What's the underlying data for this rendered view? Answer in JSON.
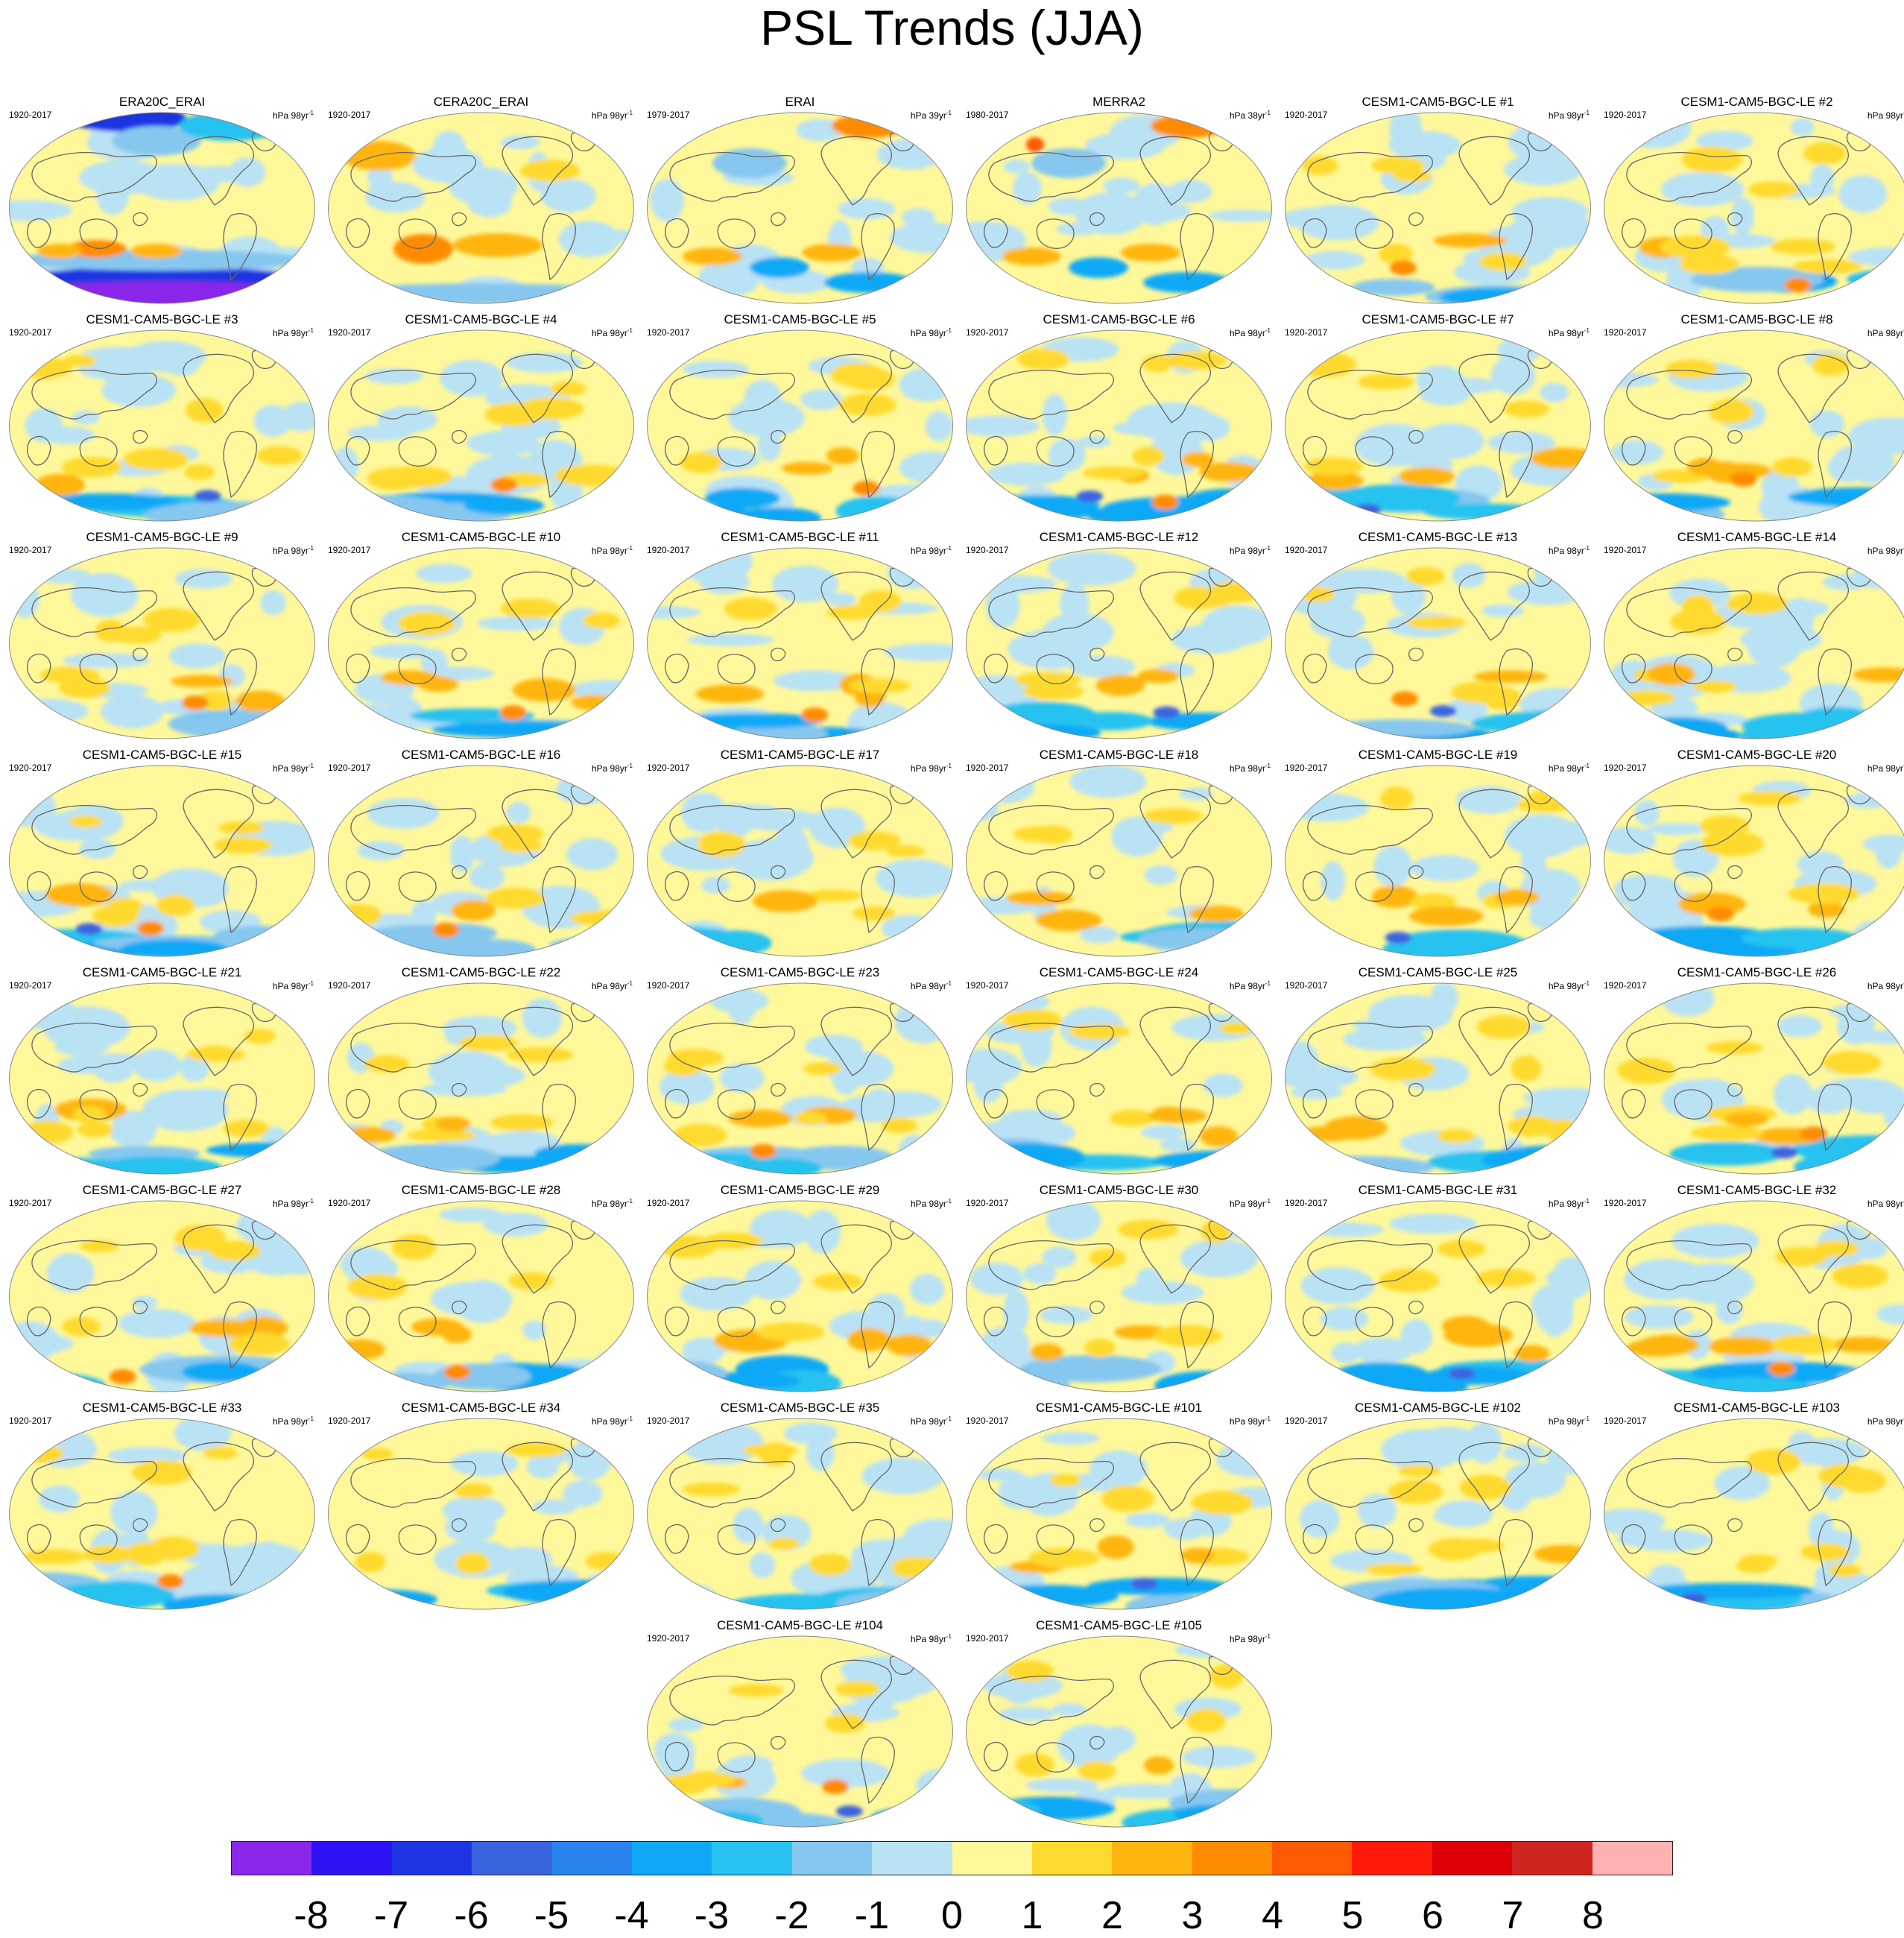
{
  "title": "PSL Trends (JJA)",
  "colorbar": {
    "colors": [
      "#8a27ea",
      "#2d12f5",
      "#1d35e3",
      "#3a63df",
      "#2a84f0",
      "#0fa9f7",
      "#27c2f0",
      "#86c7ef",
      "#b9e2f4",
      "#fff89a",
      "#ffda2e",
      "#ffb510",
      "#ff8c00",
      "#ff5a00",
      "#ff1a0a",
      "#dd0007",
      "#cd2520",
      "#ffb2b2"
    ],
    "labels": [
      "-8",
      "-7",
      "-6",
      "-5",
      "-4",
      "-3",
      "-2",
      "-1",
      "0",
      "1",
      "2",
      "3",
      "4",
      "5",
      "6",
      "7",
      "8"
    ]
  },
  "panels": [
    {
      "title": "ERA20C_ERAI",
      "years": "1920-2017",
      "units": "hPa 98yr",
      "style": "era20c"
    },
    {
      "title": "CERA20C_ERAI",
      "years": "1920-2017",
      "units": "hPa 98yr",
      "style": "cera20c"
    },
    {
      "title": "ERAI",
      "years": "1979-2017",
      "units": "hPa 39yr",
      "style": "erai"
    },
    {
      "title": "MERRA2",
      "years": "1980-2017",
      "units": "hPa 38yr",
      "style": "merra2"
    },
    {
      "title": "CESM1-CAM5-BGC-LE #1",
      "years": "1920-2017",
      "units": "hPa 98yr",
      "style": "m"
    },
    {
      "title": "CESM1-CAM5-BGC-LE #2",
      "years": "1920-2017",
      "units": "hPa 98yr",
      "style": "m"
    },
    {
      "title": "CESM1-CAM5-BGC-LE #3",
      "years": "1920-2017",
      "units": "hPa 98yr",
      "style": "m"
    },
    {
      "title": "CESM1-CAM5-BGC-LE #4",
      "years": "1920-2017",
      "units": "hPa 98yr",
      "style": "m"
    },
    {
      "title": "CESM1-CAM5-BGC-LE #5",
      "years": "1920-2017",
      "units": "hPa 98yr",
      "style": "m"
    },
    {
      "title": "CESM1-CAM5-BGC-LE #6",
      "years": "1920-2017",
      "units": "hPa 98yr",
      "style": "m"
    },
    {
      "title": "CESM1-CAM5-BGC-LE #7",
      "years": "1920-2017",
      "units": "hPa 98yr",
      "style": "m"
    },
    {
      "title": "CESM1-CAM5-BGC-LE #8",
      "years": "1920-2017",
      "units": "hPa 98yr",
      "style": "m"
    },
    {
      "title": "CESM1-CAM5-BGC-LE #9",
      "years": "1920-2017",
      "units": "hPa 98yr",
      "style": "m"
    },
    {
      "title": "CESM1-CAM5-BGC-LE #10",
      "years": "1920-2017",
      "units": "hPa 98yr",
      "style": "m"
    },
    {
      "title": "CESM1-CAM5-BGC-LE #11",
      "years": "1920-2017",
      "units": "hPa 98yr",
      "style": "m"
    },
    {
      "title": "CESM1-CAM5-BGC-LE #12",
      "years": "1920-2017",
      "units": "hPa 98yr",
      "style": "m"
    },
    {
      "title": "CESM1-CAM5-BGC-LE #13",
      "years": "1920-2017",
      "units": "hPa 98yr",
      "style": "m"
    },
    {
      "title": "CESM1-CAM5-BGC-LE #14",
      "years": "1920-2017",
      "units": "hPa 98yr",
      "style": "m"
    },
    {
      "title": "CESM1-CAM5-BGC-LE #15",
      "years": "1920-2017",
      "units": "hPa 98yr",
      "style": "m"
    },
    {
      "title": "CESM1-CAM5-BGC-LE #16",
      "years": "1920-2017",
      "units": "hPa 98yr",
      "style": "m"
    },
    {
      "title": "CESM1-CAM5-BGC-LE #17",
      "years": "1920-2017",
      "units": "hPa 98yr",
      "style": "m"
    },
    {
      "title": "CESM1-CAM5-BGC-LE #18",
      "years": "1920-2017",
      "units": "hPa 98yr",
      "style": "m"
    },
    {
      "title": "CESM1-CAM5-BGC-LE #19",
      "years": "1920-2017",
      "units": "hPa 98yr",
      "style": "m"
    },
    {
      "title": "CESM1-CAM5-BGC-LE #20",
      "years": "1920-2017",
      "units": "hPa 98yr",
      "style": "m"
    },
    {
      "title": "CESM1-CAM5-BGC-LE #21",
      "years": "1920-2017",
      "units": "hPa 98yr",
      "style": "m"
    },
    {
      "title": "CESM1-CAM5-BGC-LE #22",
      "years": "1920-2017",
      "units": "hPa 98yr",
      "style": "m"
    },
    {
      "title": "CESM1-CAM5-BGC-LE #23",
      "years": "1920-2017",
      "units": "hPa 98yr",
      "style": "m"
    },
    {
      "title": "CESM1-CAM5-BGC-LE #24",
      "years": "1920-2017",
      "units": "hPa 98yr",
      "style": "m"
    },
    {
      "title": "CESM1-CAM5-BGC-LE #25",
      "years": "1920-2017",
      "units": "hPa 98yr",
      "style": "m"
    },
    {
      "title": "CESM1-CAM5-BGC-LE #26",
      "years": "1920-2017",
      "units": "hPa 98yr",
      "style": "m"
    },
    {
      "title": "CESM1-CAM5-BGC-LE #27",
      "years": "1920-2017",
      "units": "hPa 98yr",
      "style": "m"
    },
    {
      "title": "CESM1-CAM5-BGC-LE #28",
      "years": "1920-2017",
      "units": "hPa 98yr",
      "style": "m"
    },
    {
      "title": "CESM1-CAM5-BGC-LE #29",
      "years": "1920-2017",
      "units": "hPa 98yr",
      "style": "m"
    },
    {
      "title": "CESM1-CAM5-BGC-LE #30",
      "years": "1920-2017",
      "units": "hPa 98yr",
      "style": "m"
    },
    {
      "title": "CESM1-CAM5-BGC-LE #31",
      "years": "1920-2017",
      "units": "hPa 98yr",
      "style": "m"
    },
    {
      "title": "CESM1-CAM5-BGC-LE #32",
      "years": "1920-2017",
      "units": "hPa 98yr",
      "style": "m"
    },
    {
      "title": "CESM1-CAM5-BGC-LE #33",
      "years": "1920-2017",
      "units": "hPa 98yr",
      "style": "m"
    },
    {
      "title": "CESM1-CAM5-BGC-LE #34",
      "years": "1920-2017",
      "units": "hPa 98yr",
      "style": "m"
    },
    {
      "title": "CESM1-CAM5-BGC-LE #35",
      "years": "1920-2017",
      "units": "hPa 98yr",
      "style": "m"
    },
    {
      "title": "CESM1-CAM5-BGC-LE #101",
      "years": "1920-2017",
      "units": "hPa 98yr",
      "style": "m"
    },
    {
      "title": "CESM1-CAM5-BGC-LE #102",
      "years": "1920-2017",
      "units": "hPa 98yr",
      "style": "m"
    },
    {
      "title": "CESM1-CAM5-BGC-LE #103",
      "years": "1920-2017",
      "units": "hPa 98yr",
      "style": "m"
    },
    {
      "title": "CESM1-CAM5-BGC-LE #104",
      "years": "1920-2017",
      "units": "hPa 98yr",
      "style": "m"
    },
    {
      "title": "CESM1-CAM5-BGC-LE #105",
      "years": "1920-2017",
      "units": "hPa 98yr",
      "style": "m"
    }
  ]
}
